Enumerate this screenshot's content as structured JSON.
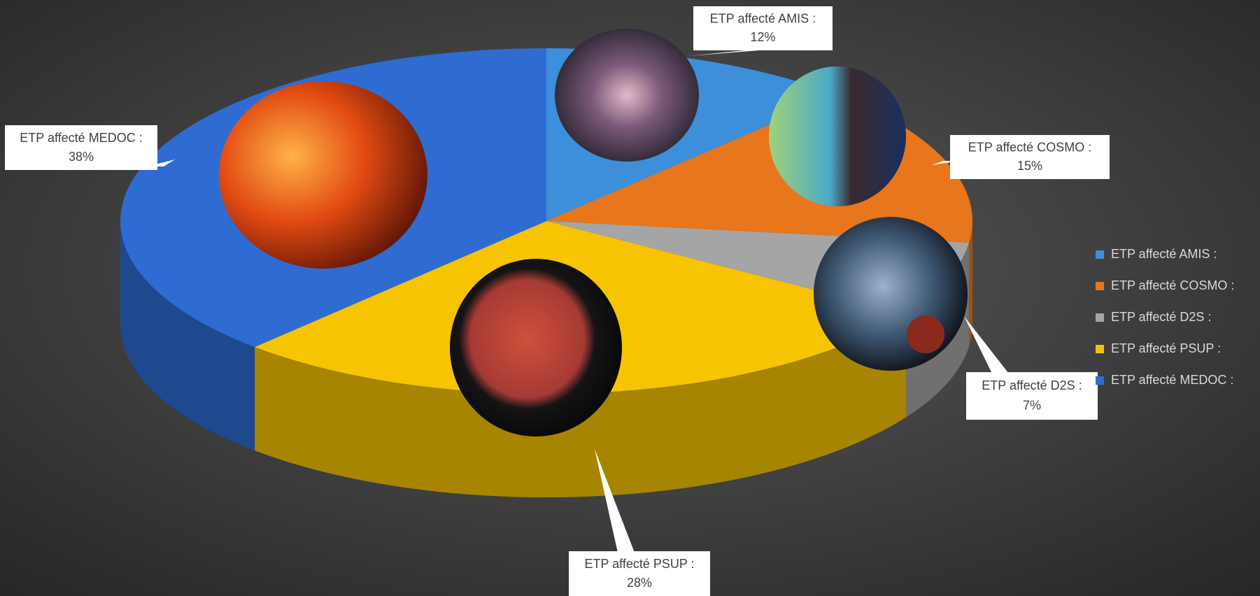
{
  "chart_data": {
    "type": "pie",
    "categories": [
      "ETP affecté AMIS :",
      "ETP affecté COSMO :",
      "ETP affecté D2S :",
      "ETP affecté PSUP :",
      "ETP affecté MEDOC :"
    ],
    "values": [
      12,
      15,
      7,
      28,
      38
    ],
    "value_labels": [
      "12%",
      "15%",
      "7%",
      "28%",
      "38%"
    ],
    "colors": [
      "#3d8fd9",
      "#e8761c",
      "#a5a5a5",
      "#f6c400",
      "#2e6cd2"
    ],
    "legend": "right"
  }
}
